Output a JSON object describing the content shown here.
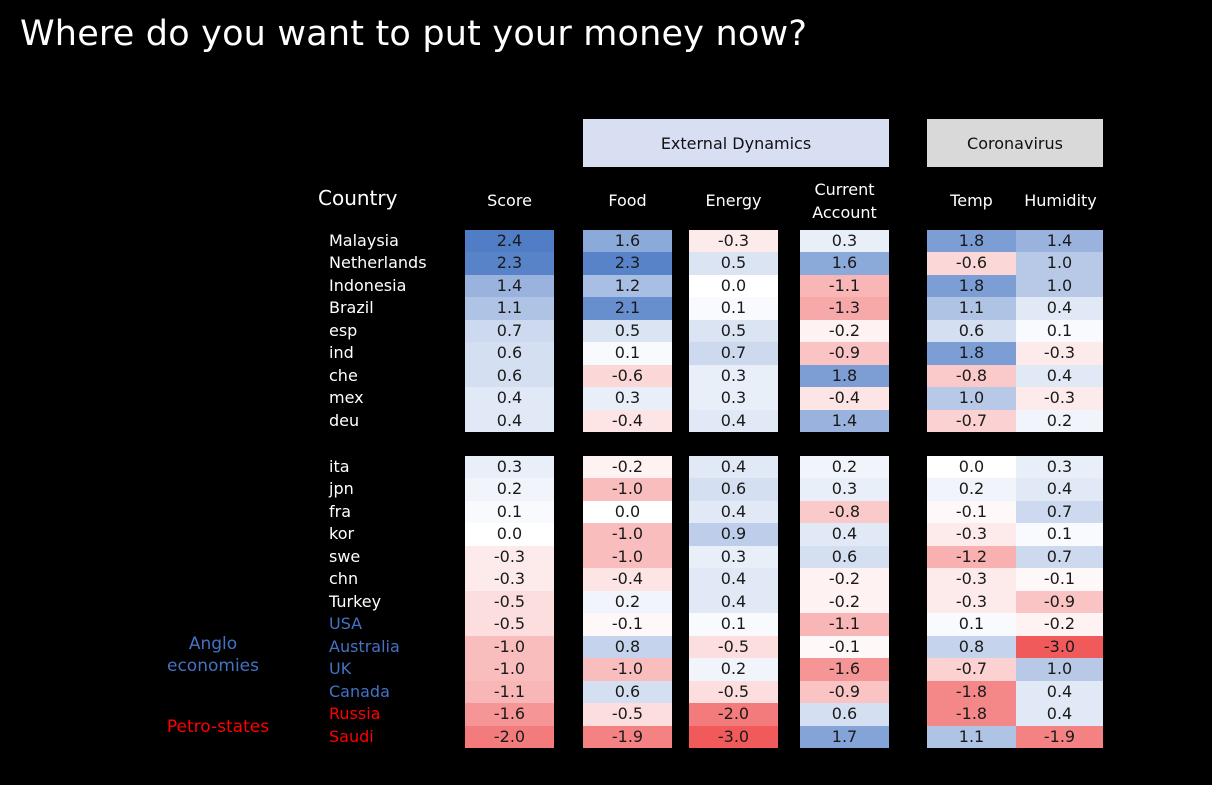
{
  "title": "Where do you want to put your money now?",
  "colors": {
    "background": "#000000",
    "external_header": "#d9dff3",
    "coronavirus_header": "#d9d9d9",
    "positive": "#4a78c4",
    "negative": "#f05a5a",
    "neutral": "#ffffff",
    "anglo": "#4472c4",
    "petro": "#ff0000",
    "default_country": "#ffffff"
  },
  "chart_data": {
    "type": "table",
    "group_headers": {
      "external": "External Dynamics",
      "coronavirus": "Coronavirus"
    },
    "headers": {
      "country": "Country",
      "score": "Score",
      "food": "Food",
      "energy": "Energy",
      "current_line1": "Current",
      "current_line2": "Account",
      "temp": "Temp",
      "humidity": "Humidity"
    },
    "side_labels": {
      "anglo_line1": "Anglo",
      "anglo_line2": "economies",
      "petro": "Petro-states"
    },
    "groups": [
      {
        "rows": [
          {
            "country": "Malaysia",
            "group": "",
            "score": "2.4",
            "food": "1.6",
            "energy": "-0.3",
            "current": "0.3",
            "temp": "1.8",
            "humidity": "1.4"
          },
          {
            "country": "Netherlands",
            "group": "",
            "score": "2.3",
            "food": "2.3",
            "energy": "0.5",
            "current": "1.6",
            "temp": "-0.6",
            "humidity": "1.0"
          },
          {
            "country": "Indonesia",
            "group": "",
            "score": "1.4",
            "food": "1.2",
            "energy": "0.0",
            "current": "-1.1",
            "temp": "1.8",
            "humidity": "1.0"
          },
          {
            "country": "Brazil",
            "group": "",
            "score": "1.1",
            "food": "2.1",
            "energy": "0.1",
            "current": "-1.3",
            "temp": "1.1",
            "humidity": "0.4"
          },
          {
            "country": "esp",
            "group": "",
            "score": "0.7",
            "food": "0.5",
            "energy": "0.5",
            "current": "-0.2",
            "temp": "0.6",
            "humidity": "0.1"
          },
          {
            "country": "ind",
            "group": "",
            "score": "0.6",
            "food": "0.1",
            "energy": "0.7",
            "current": "-0.9",
            "temp": "1.8",
            "humidity": "-0.3"
          },
          {
            "country": "che",
            "group": "",
            "score": "0.6",
            "food": "-0.6",
            "energy": "0.3",
            "current": "1.8",
            "temp": "-0.8",
            "humidity": "0.4"
          },
          {
            "country": "mex",
            "group": "",
            "score": "0.4",
            "food": "0.3",
            "energy": "0.3",
            "current": "-0.4",
            "temp": "1.0",
            "humidity": "-0.3"
          },
          {
            "country": "deu",
            "group": "",
            "score": "0.4",
            "food": "-0.4",
            "energy": "0.4",
            "current": "1.4",
            "temp": "-0.7",
            "humidity": "0.2"
          }
        ]
      },
      {
        "rows": [
          {
            "country": "ita",
            "group": "",
            "score": "0.3",
            "food": "-0.2",
            "energy": "0.4",
            "current": "0.2",
            "temp": "0.0",
            "humidity": "0.3"
          },
          {
            "country": "jpn",
            "group": "",
            "score": "0.2",
            "food": "-1.0",
            "energy": "0.6",
            "current": "0.3",
            "temp": "0.2",
            "humidity": "0.4"
          },
          {
            "country": "fra",
            "group": "",
            "score": "0.1",
            "food": "0.0",
            "energy": "0.4",
            "current": "-0.8",
            "temp": "-0.1",
            "humidity": "0.7"
          },
          {
            "country": "kor",
            "group": "",
            "score": "0.0",
            "food": "-1.0",
            "energy": "0.9",
            "current": "0.4",
            "temp": "-0.3",
            "humidity": "0.1"
          },
          {
            "country": "swe",
            "group": "",
            "score": "-0.3",
            "food": "-1.0",
            "energy": "0.3",
            "current": "0.6",
            "temp": "-1.2",
            "humidity": "0.7"
          },
          {
            "country": "chn",
            "group": "",
            "score": "-0.3",
            "food": "-0.4",
            "energy": "0.4",
            "current": "-0.2",
            "temp": "-0.3",
            "humidity": "-0.1"
          },
          {
            "country": "Turkey",
            "group": "",
            "score": "-0.5",
            "food": "0.2",
            "energy": "0.4",
            "current": "-0.2",
            "temp": "-0.3",
            "humidity": "-0.9"
          },
          {
            "country": "USA",
            "group": "anglo",
            "score": "-0.5",
            "food": "-0.1",
            "energy": "0.1",
            "current": "-1.1",
            "temp": "0.1",
            "humidity": "-0.2"
          },
          {
            "country": "Australia",
            "group": "anglo",
            "score": "-1.0",
            "food": "0.8",
            "energy": "-0.5",
            "current": "-0.1",
            "temp": "0.8",
            "humidity": "-3.0"
          },
          {
            "country": "UK",
            "group": "anglo",
            "score": "-1.0",
            "food": "-1.0",
            "energy": "0.2",
            "current": "-1.6",
            "temp": "-0.7",
            "humidity": "1.0"
          },
          {
            "country": "Canada",
            "group": "anglo",
            "score": "-1.1",
            "food": "0.6",
            "energy": "-0.5",
            "current": "-0.9",
            "temp": "-1.8",
            "humidity": "0.4"
          },
          {
            "country": "Russia",
            "group": "petro",
            "score": "-1.6",
            "food": "-0.5",
            "energy": "-2.0",
            "current": "0.6",
            "temp": "-1.8",
            "humidity": "0.4"
          },
          {
            "country": "Saudi",
            "group": "petro",
            "score": "-2.0",
            "food": "-1.9",
            "energy": "-3.0",
            "current": "1.7",
            "temp": "1.1",
            "humidity": "-1.9"
          }
        ]
      }
    ]
  }
}
